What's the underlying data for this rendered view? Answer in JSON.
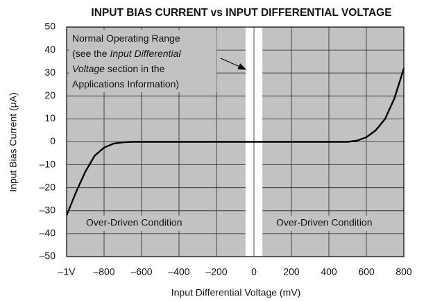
{
  "chart_data": {
    "type": "line",
    "title": "INPUT BIAS CURRENT vs INPUT DIFFERENTIAL VOLTAGE",
    "x_label": "Input Differential Voltage (mV)",
    "y_label": "Input Bias Current (μA)",
    "x": [
      -1000,
      -950,
      -900,
      -850,
      -800,
      -750,
      -700,
      -650,
      0,
      500,
      550,
      600,
      650,
      700,
      750,
      800
    ],
    "series": [
      {
        "name": "Input Bias Current",
        "color": "#000000",
        "values": [
          -32,
          -22,
          -13,
          -6,
          -2.5,
          -0.8,
          -0.2,
          0,
          0,
          0,
          0.5,
          2,
          5,
          10,
          19,
          32
        ]
      }
    ],
    "xlim": [
      -1000,
      800
    ],
    "ylim": [
      -50,
      50
    ],
    "xticks": [
      {
        "value": -1000,
        "label": "–1V"
      },
      {
        "value": -800,
        "label": "–800"
      },
      {
        "value": -600,
        "label": "–600"
      },
      {
        "value": -400,
        "label": "–400"
      },
      {
        "value": -200,
        "label": "–200"
      },
      0,
      200,
      400,
      600,
      800
    ],
    "yticks": [
      {
        "value": -50,
        "label": "–50"
      },
      {
        "value": -40,
        "label": "–40"
      },
      {
        "value": -30,
        "label": "–30"
      },
      {
        "value": -20,
        "label": "–20"
      },
      {
        "value": -10,
        "label": "–10"
      },
      0,
      10,
      20,
      30,
      40,
      50
    ],
    "grid": true,
    "plot_color": "#c2c2c2",
    "normal_range": [
      -45,
      45
    ],
    "annotation": [
      [
        "Normal Operating Range"
      ],
      [
        "(see the ",
        "Input Differential"
      ],
      [
        "Voltage",
        " section in the"
      ],
      [
        "Applications Information)"
      ]
    ],
    "annotation_italic": [
      [
        false
      ],
      [
        false,
        true
      ],
      [
        true,
        false
      ],
      [
        false
      ]
    ],
    "region_labels": [
      "Over-Driven Condition",
      "Over-Driven Condition"
    ]
  }
}
